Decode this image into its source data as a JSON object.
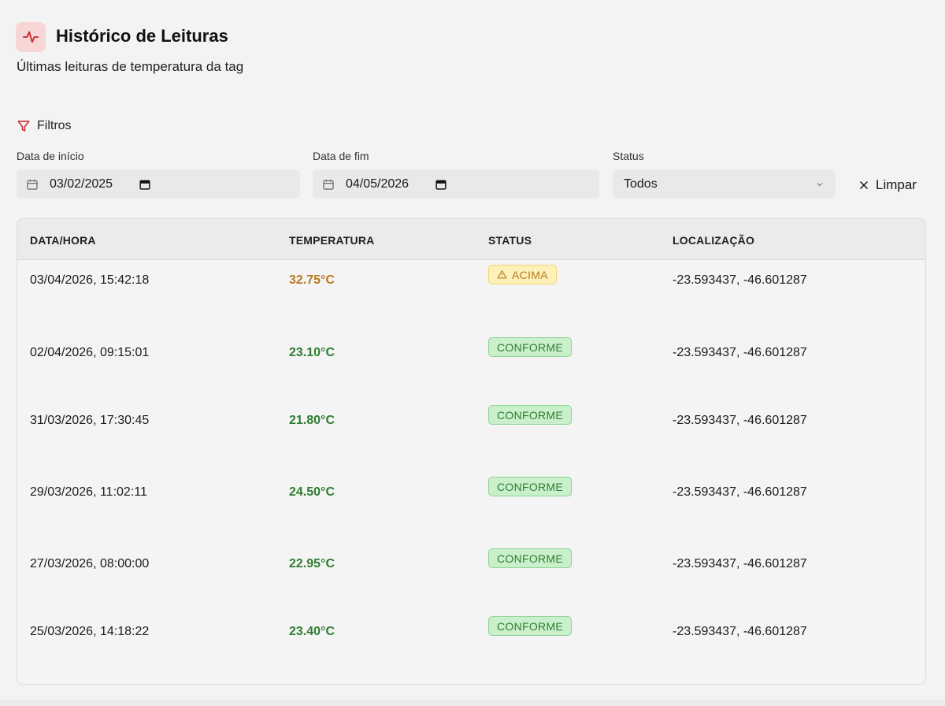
{
  "header": {
    "title": "Histórico de Leituras",
    "subtitle": "Últimas leituras de temperatura da tag",
    "icon": "activity-icon",
    "icon_color": "#c8262c"
  },
  "filters": {
    "title": "Filtros",
    "start_label": "Data de início",
    "start_value": "03/02/2025",
    "end_label": "Data de fim",
    "end_value": "04/05/2026",
    "status_label": "Status",
    "status_value": "Todos",
    "clear_label": "Limpar"
  },
  "table": {
    "columns": [
      "DATA/HORA",
      "TEMPERATURA",
      "STATUS",
      "LOCALIZAÇÃO"
    ],
    "rows": [
      {
        "datetime": "03/04/2026, 15:42:18",
        "temperature": "32.75°C",
        "status": "ACIMA",
        "status_type": "warning",
        "location": "-23.593437, -46.601287"
      },
      {
        "datetime": "02/04/2026, 09:15:01",
        "temperature": "23.10°C",
        "status": "CONFORME",
        "status_type": "ok",
        "location": "-23.593437, -46.601287"
      },
      {
        "datetime": "31/03/2026, 17:30:45",
        "temperature": "21.80°C",
        "status": "CONFORME",
        "status_type": "ok",
        "location": "-23.593437, -46.601287"
      },
      {
        "datetime": "29/03/2026, 11:02:11",
        "temperature": "24.50°C",
        "status": "CONFORME",
        "status_type": "ok",
        "location": "-23.593437, -46.601287"
      },
      {
        "datetime": "27/03/2026, 08:00:00",
        "temperature": "22.95°C",
        "status": "CONFORME",
        "status_type": "ok",
        "location": "-23.593437, -46.601287"
      },
      {
        "datetime": "25/03/2026, 14:18:22",
        "temperature": "23.40°C",
        "status": "CONFORME",
        "status_type": "ok",
        "location": "-23.593437, -46.601287"
      }
    ]
  },
  "colors": {
    "warning_text": "#b7791f",
    "warning_bg": "#fdf0b8",
    "warning_border": "#f0d56a",
    "ok_text": "#2e7d32",
    "ok_bg": "#c9efcb",
    "ok_border": "#8ed393"
  }
}
